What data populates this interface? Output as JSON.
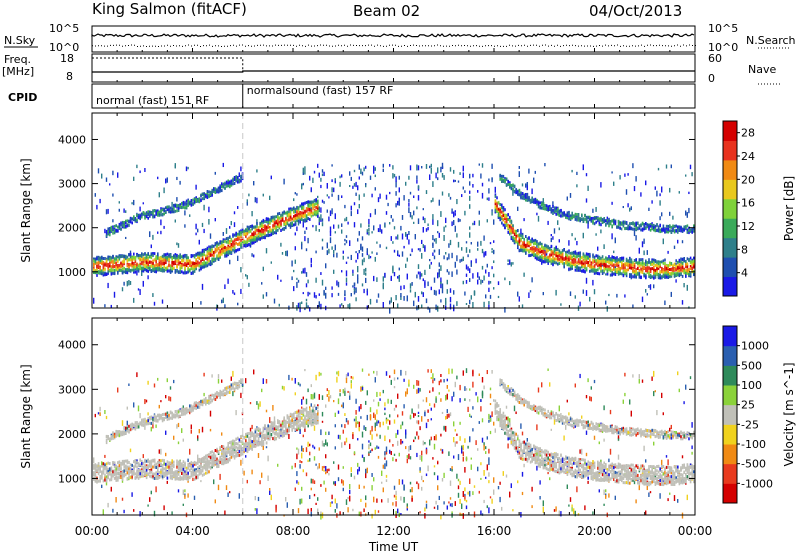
{
  "header": {
    "title": "King Salmon (fitACF)",
    "beam": "Beam 02",
    "date": "04/Oct/2013"
  },
  "top_panel": {
    "left_label": "N.Sky",
    "right_label": "N.Search",
    "left_ticks": [
      "10^5",
      "10^0"
    ],
    "right_ticks": [
      "10^5",
      "10^0"
    ]
  },
  "freq_panel": {
    "left_label_1": "Freq.",
    "left_label_2": "[MHz]",
    "right_label": "Nave",
    "left_ticks": [
      "18",
      "8"
    ],
    "right_ticks": [
      "60",
      "0"
    ]
  },
  "cpid_panel": {
    "label": "CPID",
    "segments": [
      {
        "label": "normal (fast) 151 RF",
        "start": 0,
        "end": 6
      },
      {
        "label": "normalsound (fast) 157 RF",
        "start": 6,
        "end": 24
      }
    ]
  },
  "chart_data": [
    {
      "type": "heatmap",
      "name": "power",
      "ylabel": "Slant Range [km]",
      "xlabel": "Time UT",
      "x_ticks": [
        "00:00",
        "04:00",
        "08:00",
        "12:00",
        "16:00",
        "20:00",
        "00:00"
      ],
      "x_range_hours": [
        0,
        24
      ],
      "y_ticks": [
        1000,
        2000,
        3000,
        4000
      ],
      "ylim": [
        180,
        4600
      ],
      "colorbar_label": "Power [dB]",
      "colorbar_ticks": [
        4,
        8,
        12,
        16,
        20,
        24,
        28
      ],
      "colorbar_range": [
        0,
        30
      ],
      "colors": [
        "#1a1ae6",
        "#1f4fb0",
        "#2e7f8a",
        "#3aaa5a",
        "#7fd23a",
        "#e8c81e",
        "#f08a14",
        "#e8321e",
        "#d40000"
      ],
      "features": [
        {
          "desc": "dense band",
          "t": [
            0,
            1,
            2,
            3,
            4,
            5,
            6,
            7,
            8,
            9
          ],
          "range": [
            1150,
            1200,
            1250,
            1230,
            1200,
            1500,
            1800,
            2050,
            2300,
            2500
          ]
        },
        {
          "desc": "upper arc",
          "t": [
            0.5,
            2,
            3.5,
            5,
            6
          ],
          "range": [
            1900,
            2300,
            2500,
            2900,
            3200
          ]
        },
        {
          "desc": "dense band",
          "t": [
            16,
            17,
            18,
            19,
            20,
            21,
            22,
            23,
            24
          ],
          "range": [
            2600,
            1700,
            1450,
            1300,
            1200,
            1150,
            1100,
            1100,
            1150
          ]
        },
        {
          "desc": "upper arc",
          "t": [
            16.2,
            17,
            18,
            19,
            20,
            21,
            22,
            23,
            24
          ],
          "range": [
            3200,
            2800,
            2500,
            2300,
            2200,
            2100,
            2050,
            2000,
            2000
          ]
        }
      ]
    },
    {
      "type": "heatmap",
      "name": "velocity",
      "ylabel": "Slant Range [km]",
      "xlabel": "Time UT",
      "x_ticks": [
        "00:00",
        "04:00",
        "08:00",
        "12:00",
        "16:00",
        "20:00",
        "00:00"
      ],
      "x_range_hours": [
        0,
        24
      ],
      "y_ticks": [
        1000,
        2000,
        3000,
        4000
      ],
      "ylim": [
        180,
        4600
      ],
      "colorbar_label": "Velocity [m s^-1]",
      "colorbar_ticks": [
        "1000",
        "500",
        "100",
        "25",
        "-25",
        "-100",
        "-500",
        "-1000"
      ],
      "colors": [
        "#1a1ae6",
        "#2a5fb0",
        "#2e8a5a",
        "#8bd23a",
        "#c0c0b8",
        "#f0d21e",
        "#f08a14",
        "#e83a1e",
        "#d40000"
      ]
    }
  ]
}
